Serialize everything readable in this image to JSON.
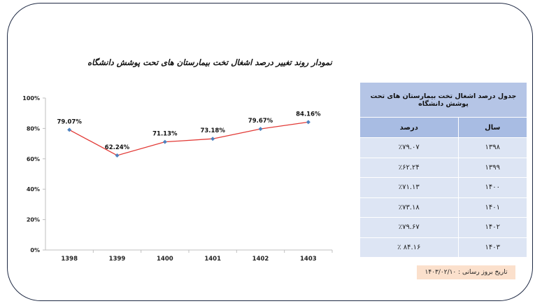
{
  "chart_data": {
    "type": "line",
    "title": "نمودار روند تغییر درصد اشغال تخت بیمارستان های تحت پوشش دانشگاه",
    "categories": [
      "1398",
      "1399",
      "1400",
      "1401",
      "1402",
      "1403"
    ],
    "series": [
      {
        "values": [
          79.07,
          62.24,
          71.13,
          73.18,
          79.67,
          84.16
        ],
        "color": "#e23a36",
        "marker_color": "#4f81bd"
      }
    ],
    "data_labels": [
      "79.07%",
      "62.24%",
      "71.13%",
      "73.18%",
      "79.67%",
      "84.16%"
    ],
    "y_ticks": [
      "0%",
      "20%",
      "40%",
      "60%",
      "80%",
      "100%"
    ],
    "ylim": [
      0,
      100
    ],
    "grid": false,
    "legend": "none",
    "xlabel": "",
    "ylabel": ""
  },
  "table": {
    "title": "جدول درصد اشغال تخت بیمارستان های تحت پوشش دانشگاه",
    "columns": {
      "year": "سال",
      "percent": "درصد"
    },
    "rows": [
      {
        "year": "۱۳۹۸",
        "percent": "٪۷۹.۰۷"
      },
      {
        "year": "۱۳۹۹",
        "percent": "٪۶۲.۲۴"
      },
      {
        "year": "۱۴۰۰",
        "percent": "٪۷۱.۱۳"
      },
      {
        "year": "۱۴۰۱",
        "percent": "٪۷۳.۱۸"
      },
      {
        "year": "۱۴۰۲",
        "percent": "٪۷۹.۶۷"
      },
      {
        "year": "۱۴۰۳",
        "percent": "٪ ۸۴.۱۶"
      }
    ]
  },
  "update_note": "تاریخ بروز رسانی : ۱۴۰۳/۰۲/۱۰"
}
